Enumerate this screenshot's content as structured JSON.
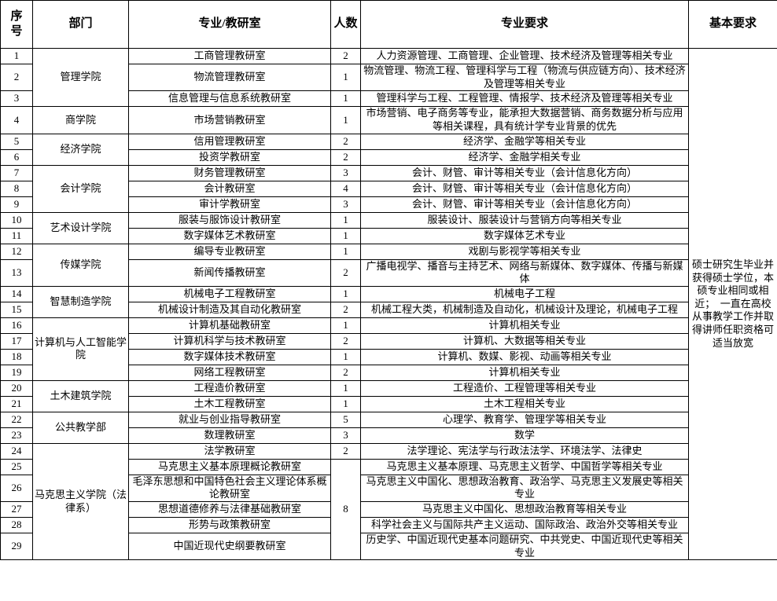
{
  "table": {
    "headers": [
      "序\n号",
      "部门",
      "专业/教研室",
      "人数",
      "专业要求",
      "基本要求"
    ],
    "basic_requirement": "硕士研究生毕业并获得硕士学位，本硕专业相同或相近；　一直在高校从事教学工作并取得讲师任职资格可适当放宽",
    "rows": [
      {
        "no": "1",
        "dept": "管理学院",
        "dept_span": 3,
        "office": "工商管理教研室",
        "count": "2",
        "requirement": "人力资源管理、工商管理、企业管理、技术经济及管理等相关专业"
      },
      {
        "no": "2",
        "office": "物流管理教研室",
        "count": "1",
        "requirement": "物流管理、物流工程、管理科学与工程（物流与供应链方向）、技术经济及管理等相关专业"
      },
      {
        "no": "3",
        "office": "信息管理与信息系统教研室",
        "count": "1",
        "requirement": "管理科学与工程、工程管理、情报学、技术经济及管理等相关专业"
      },
      {
        "no": "4",
        "dept": "商学院",
        "dept_span": 1,
        "office": "市场营销教研室",
        "count": "1",
        "requirement": "市场营销、电子商务等专业，能承担大数据营销、商务数据分析与应用等相关课程，具有统计学专业背景的优先"
      },
      {
        "no": "5",
        "dept": "经济学院",
        "dept_span": 2,
        "office": "信用管理教研室",
        "count": "2",
        "requirement": "经济学、金融学等相关专业"
      },
      {
        "no": "6",
        "office": "投资学教研室",
        "count": "2",
        "requirement": "经济学、金融学相关专业"
      },
      {
        "no": "7",
        "dept": "会计学院",
        "dept_span": 3,
        "office": "财务管理教研室",
        "count": "3",
        "requirement": "会计、财管、审计等相关专业（会计信息化方向）"
      },
      {
        "no": "8",
        "office": "会计教研室",
        "count": "4",
        "requirement": "会计、财管、审计等相关专业（会计信息化方向）"
      },
      {
        "no": "9",
        "office": "审计学教研室",
        "count": "3",
        "requirement": "会计、财管、审计等相关专业（会计信息化方向）"
      },
      {
        "no": "10",
        "dept": "艺术设计学院",
        "dept_span": 2,
        "office": "服装与服饰设计教研室",
        "count": "1",
        "requirement": "服装设计、服装设计与营销方向等相关专业"
      },
      {
        "no": "11",
        "office": "数字媒体艺术教研室",
        "count": "1",
        "requirement": "数字媒体艺术专业"
      },
      {
        "no": "12",
        "dept": "传媒学院",
        "dept_span": 2,
        "office": "编导专业教研室",
        "count": "1",
        "requirement": "戏剧与影视学等相关专业"
      },
      {
        "no": "13",
        "office": "新闻传播教研室",
        "count": "2",
        "requirement": "广播电视学、播音与主持艺术、网络与新媒体、数字媒体、传播与新媒体"
      },
      {
        "no": "14",
        "dept": "智慧制造学院",
        "dept_span": 2,
        "office": "机械电子工程教研室",
        "count": "1",
        "requirement": "机械电子工程"
      },
      {
        "no": "15",
        "office": "机械设计制造及其自动化教研室",
        "count": "2",
        "requirement": "机械工程大类，机械制造及自动化，机械设计及理论，机械电子工程"
      },
      {
        "no": "16",
        "dept": "计算机与人工智能学院",
        "dept_span": 4,
        "office": "计算机基础教研室",
        "count": "1",
        "requirement": "计算机相关专业"
      },
      {
        "no": "17",
        "office": "计算机科学与技术教研室",
        "count": "2",
        "requirement": "计算机、大数据等相关专业"
      },
      {
        "no": "18",
        "office": "数字媒体技术教研室",
        "count": "1",
        "requirement": "计算机、数媒、影视、动画等相关专业"
      },
      {
        "no": "19",
        "office": "网络工程教研室",
        "count": "2",
        "requirement": "计算机相关专业"
      },
      {
        "no": "20",
        "dept": "土木建筑学院",
        "dept_span": 2,
        "office": "工程造价教研室",
        "count": "1",
        "requirement": "工程造价、工程管理等相关专业"
      },
      {
        "no": "21",
        "office": "土木工程教研室",
        "count": "1",
        "requirement": "土木工程相关专业"
      },
      {
        "no": "22",
        "dept": "公共教学部",
        "dept_span": 2,
        "office": "就业与创业指导教研室",
        "count": "5",
        "requirement": "心理学、教育学、管理学等相关专业"
      },
      {
        "no": "23",
        "office": "数理教研室",
        "count": "3",
        "requirement": "数学"
      },
      {
        "no": "24",
        "dept": "马克思主义学院（法律系）",
        "dept_span": 6,
        "office": "法学教研室",
        "count": "2",
        "requirement": "法学理论、宪法学与行政法法学、环境法学、法律史"
      },
      {
        "no": "25",
        "office": "马克思主义基本原理概论教研室",
        "count": "8",
        "count_span": 5,
        "requirement": "马克思主义基本原理、马克思主义哲学、中国哲学等相关专业"
      },
      {
        "no": "26",
        "office": "毛泽东思想和中国特色社会主义理论体系概论教研室",
        "requirement": "马克思主义中国化、思想政治教育、政治学、马克思主义发展史等相关专业"
      },
      {
        "no": "27",
        "office": "思想道德修养与法律基础教研室",
        "requirement": "马克思主义中国化、思想政治教育等相关专业"
      },
      {
        "no": "28",
        "office": "形势与政策教研室",
        "requirement": "科学社会主义与国际共产主义运动、国际政治、政治外交等相关专业"
      },
      {
        "no": "29",
        "office": "中国近现代史纲要教研室",
        "requirement": "历史学、中国近现代史基本问题研究、中共党史、中国近现代史等相关专业"
      }
    ]
  },
  "colors": {
    "border": "#000000",
    "background": "#ffffff",
    "text": "#000000"
  }
}
